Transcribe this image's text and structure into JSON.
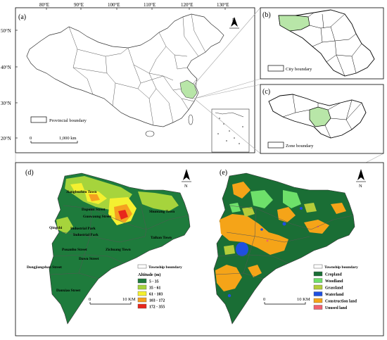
{
  "panels": {
    "a": {
      "label": "(a)",
      "lon_ticks": [
        "80°E",
        "90°E",
        "100°E",
        "110°E",
        "120°E",
        "130°E"
      ],
      "lat_ticks": [
        "50°N",
        "40°N",
        "30°N",
        "20°N"
      ],
      "legend": "Provincial boundary",
      "scale": {
        "start": "0",
        "end": "1,000 km"
      },
      "north": "N"
    },
    "b": {
      "label": "(b)",
      "legend": "City boundary"
    },
    "c": {
      "label": "(c)",
      "legend": "Zone boundary"
    },
    "d": {
      "label": "(d)",
      "north": "N",
      "places": [
        "Jiangbuzhen Town",
        "Dapoint Street",
        "Guowaung Street",
        "Shuntang Town",
        "Qingzhi",
        "Industrial Park",
        "Industrial Park",
        "Taihan Town",
        "Pouanhu Street",
        "Zichuang Town",
        "Dawu Street",
        "Dongjiangshan Street",
        "Danxiao Street"
      ],
      "legend_boundary": "Township boundary",
      "legend_title": "Altitude (m)",
      "classes": [
        {
          "label": "5 - 35",
          "color": "#1e7b3c"
        },
        {
          "label": "35 - 61",
          "color": "#a6d43c"
        },
        {
          "label": "61 - 103",
          "color": "#f4f030"
        },
        {
          "label": "103 - 172",
          "color": "#f5a020"
        },
        {
          "label": "172 - 355",
          "color": "#e8261c"
        }
      ],
      "scale": {
        "start": "0",
        "end": "10 KM"
      }
    },
    "e": {
      "label": "(e)",
      "north": "N",
      "legend_boundary": "Township boundary",
      "classes": [
        {
          "label": "Cropland",
          "color": "#1a6e35"
        },
        {
          "label": "Woodland",
          "color": "#6ee06a"
        },
        {
          "label": "Grassland",
          "color": "#b4cc3a"
        },
        {
          "label": "Waterland",
          "color": "#1f4fe0"
        },
        {
          "label": "Construction land",
          "color": "#f5a418"
        },
        {
          "label": "Unused land",
          "color": "#f06070"
        }
      ],
      "scale": {
        "start": "0",
        "end": "10 KM"
      }
    }
  }
}
